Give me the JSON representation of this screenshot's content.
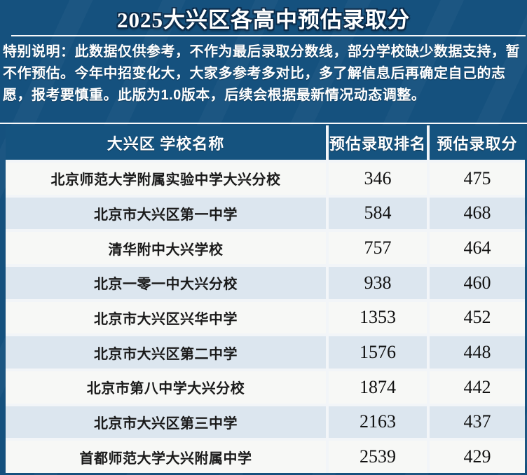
{
  "title": "2025大兴区各高中预估录取分",
  "notice": "特别说明：此数据仅供参考，不作为最后录取分数线，部分学校缺少数据支持，暂不作预估。今年中招变化大，大家多参考多对比，多了解信息后再确定自己的志愿，报考要慎重。此版为1.0版本，后续会根据最新情况动态调整。",
  "colors": {
    "page_background": "#15517E",
    "header_background": "#15537F",
    "row_white": "#F7F8F6",
    "row_light_blue": "#DCE6EF",
    "title_text": "#FFFFFF",
    "row_text": "#1A1A1A"
  },
  "table": {
    "columns": [
      "大兴区 学校名称",
      "预估录取排名",
      "预估录取分"
    ],
    "rows": [
      {
        "school": "北京师范大学附属实验中学大兴分校",
        "rank": "346",
        "score": "475"
      },
      {
        "school": "北京市大兴区第一中学",
        "rank": "584",
        "score": "468"
      },
      {
        "school": "清华附中大兴学校",
        "rank": "757",
        "score": "464"
      },
      {
        "school": "北京一零一中大兴分校",
        "rank": "938",
        "score": "460"
      },
      {
        "school": "北京市大兴区兴华中学",
        "rank": "1353",
        "score": "452"
      },
      {
        "school": "北京市大兴区第二中学",
        "rank": "1576",
        "score": "448"
      },
      {
        "school": "北京市第八中学大兴分校",
        "rank": "1874",
        "score": "442"
      },
      {
        "school": "北京市大兴区第三中学",
        "rank": "2163",
        "score": "437"
      },
      {
        "school": "首都师范大学大兴附属中学",
        "rank": "2539",
        "score": "429"
      }
    ]
  }
}
